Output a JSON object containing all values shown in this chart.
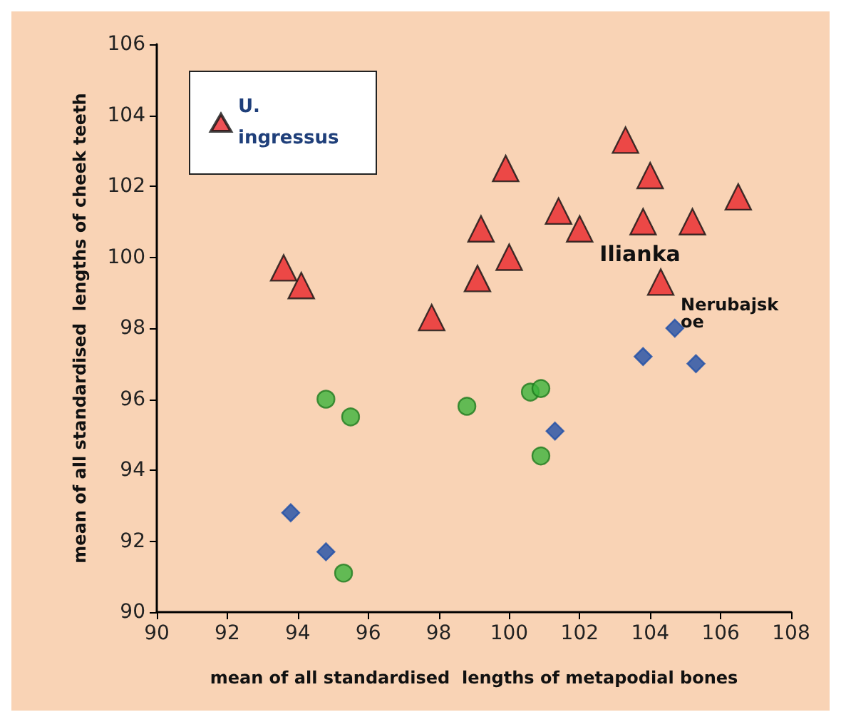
{
  "chart_data": {
    "type": "scatter",
    "xlabel": "mean of all standardised  lengths of metapodial bones",
    "ylabel": "mean of all standardised  lengths of cheek teeth",
    "xlim": [
      90,
      108
    ],
    "ylim": [
      90,
      106
    ],
    "xticks": [
      90,
      92,
      94,
      96,
      98,
      100,
      102,
      104,
      106,
      108
    ],
    "yticks": [
      90,
      92,
      94,
      96,
      98,
      100,
      102,
      104,
      106
    ],
    "grid": false,
    "legend": "top left",
    "series": [
      {
        "name": "U. ingressus",
        "color": "#e8262a",
        "marker": "triangle",
        "x": [
          93.6,
          94.1,
          97.8,
          99.1,
          99.2,
          99.9,
          100.0,
          101.4,
          102.0,
          103.3,
          103.8,
          104.0,
          104.3,
          105.2,
          106.5
        ],
        "values": [
          99.7,
          99.2,
          98.3,
          99.4,
          100.8,
          102.5,
          100.0,
          101.3,
          100.8,
          103.3,
          101.0,
          102.3,
          99.3,
          101.0,
          101.7
        ]
      },
      {
        "color": "#3cb43c",
        "marker": "circle",
        "x": [
          94.8,
          95.5,
          98.8,
          100.6,
          100.9,
          100.9,
          95.3
        ],
        "values": [
          96.0,
          95.5,
          95.8,
          96.2,
          96.3,
          94.4,
          91.1
        ]
      },
      {
        "color": "#1f4fa8",
        "marker": "diamond",
        "x": [
          93.8,
          94.8,
          101.3,
          103.8,
          104.7,
          105.3
        ],
        "values": [
          92.8,
          91.7,
          95.1,
          97.2,
          98.0,
          97.0
        ]
      }
    ],
    "annotations": [
      {
        "text": "Ilianka",
        "x": 102.0,
        "y": 100.8
      },
      {
        "text": "Nerubajskoe",
        "x": 104.3,
        "y": 99.3
      }
    ]
  }
}
